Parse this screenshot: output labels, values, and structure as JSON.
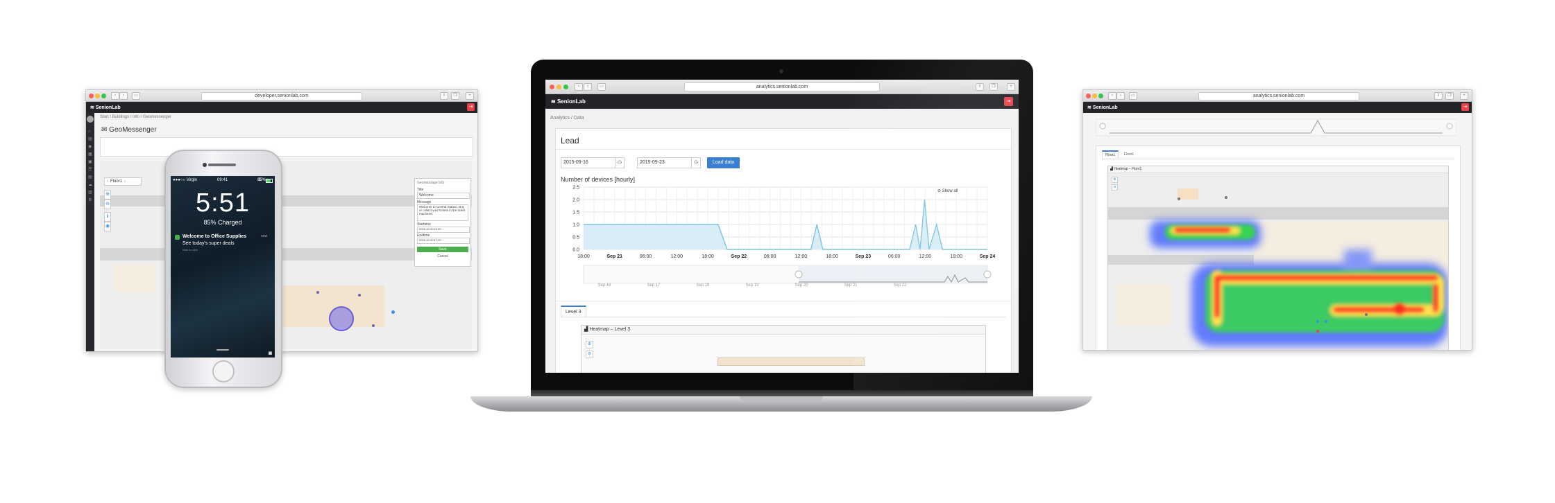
{
  "left_browser": {
    "url": "developer.senionlab.com",
    "brand": "SenionLab",
    "breadcrumb": "Start / Buildings / Info / Geomessenger",
    "page_title": "GeoMessenger",
    "floor_select": "Floor1",
    "panel": {
      "heading": "Geomessage Info",
      "title_label": "Title",
      "title_value": "Welcome",
      "message_label": "Message",
      "message_value": "Welcome to Central Station. Buy or collect your tickets in the ticket machines.",
      "starttime_label": "Starttime",
      "starttime_value": "2015-10-20 13:00",
      "endtime_label": "Endtime",
      "endtime_value": "2015-10-20 17:00",
      "save_label": "Save",
      "cancel_label": "Cancel"
    }
  },
  "phone": {
    "carrier": "●●●○○ Virgin",
    "clock_small": "09:41",
    "battery": "85%",
    "time": "5:51",
    "charge_status": "85% Charged",
    "notification_title": "Welcome to Office Supplies",
    "notification_time": "now",
    "notification_body": "See today's super deals",
    "notification_hint": "slide to view"
  },
  "laptop": {
    "url": "analytics.senionlab.com",
    "brand": "SenionLab",
    "breadcrumb": "Analytics /  Data",
    "page_title": "Lead",
    "start_date": "2015-09-16",
    "end_date": "2015-09-23",
    "load_button": "Load data",
    "show_all": "Show all",
    "tab": "Level 3",
    "heatmap_title": "Heatmap – Level 3",
    "nav_labels": [
      "Sep 16",
      "Sep 17",
      "Sep 18",
      "Sep 19",
      "Sep 20",
      "Sep 21",
      "Sep 22"
    ]
  },
  "right_browser": {
    "url": "analytics.senionlab.com",
    "brand": "SenionLab",
    "tabs": [
      "Floor1",
      "Floor1"
    ],
    "heatmap_title": "Heatmap – Floor1"
  },
  "chart_data": {
    "type": "area",
    "title": "Number of devices [hourly]",
    "ylim": [
      0,
      2.5
    ],
    "yticks": [
      "2.5",
      "2.0",
      "1.5",
      "1.0",
      "0.5",
      "0.0"
    ],
    "x_ticks": [
      {
        "label": "18:00",
        "bold": false
      },
      {
        "label": "Sep 21",
        "bold": true
      },
      {
        "label": "06:00",
        "bold": false
      },
      {
        "label": "12:00",
        "bold": false
      },
      {
        "label": "18:00",
        "bold": false
      },
      {
        "label": "Sep 22",
        "bold": true
      },
      {
        "label": "06:00",
        "bold": false
      },
      {
        "label": "12:00",
        "bold": false
      },
      {
        "label": "18:00",
        "bold": false
      },
      {
        "label": "Sep 23",
        "bold": true
      },
      {
        "label": "06:00",
        "bold": false
      },
      {
        "label": "12:00",
        "bold": false
      },
      {
        "label": "18:00",
        "bold": false
      },
      {
        "label": "Sep 24",
        "bold": true
      }
    ],
    "grid": true,
    "series": [
      {
        "color": "#7ec3de",
        "points": [
          [
            0,
            1
          ],
          [
            9,
            1
          ],
          [
            9.6,
            0
          ],
          [
            15.2,
            0
          ],
          [
            15.6,
            1
          ],
          [
            16,
            0
          ],
          [
            21.8,
            0
          ],
          [
            22.2,
            1
          ],
          [
            22.5,
            0
          ],
          [
            22.8,
            2
          ],
          [
            23.1,
            0
          ],
          [
            23.6,
            1
          ],
          [
            24,
            0
          ],
          [
            27,
            0
          ]
        ]
      }
    ],
    "grid_color": "#e3e3e3",
    "accent": "#3a8ee6"
  }
}
